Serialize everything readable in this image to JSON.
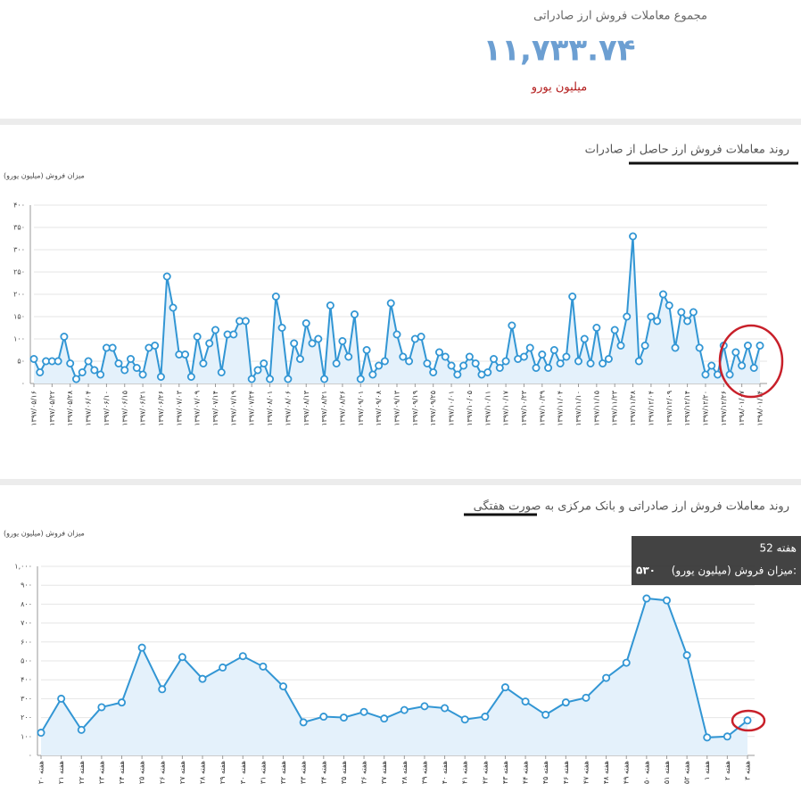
{
  "summary": {
    "title": "مجموع معاملات فروش ارز صادراتی",
    "value": "۱۱,۷۳۳.۷۴",
    "unit": "میلیون یورو"
  },
  "chart_data": [
    {
      "type": "line",
      "title": "روند معاملات فروش ارز حاصل از صادرات",
      "y_label": "میزان فروش (میلیون یورو)",
      "color": "#3296d4",
      "area_color": "#e4f1fb",
      "grid": true,
      "ylim": [
        0,
        400
      ],
      "yticks": [
        {
          "value": 0,
          "label": "۰"
        },
        {
          "value": 50,
          "label": "۵۰"
        },
        {
          "value": 100,
          "label": "۱۰۰"
        },
        {
          "value": 150,
          "label": "۱۵۰"
        },
        {
          "value": 200,
          "label": "۲۰۰"
        },
        {
          "value": 250,
          "label": "۲۵۰"
        },
        {
          "value": 300,
          "label": "۳۰۰"
        },
        {
          "value": 350,
          "label": "۳۵۰"
        },
        {
          "value": 400,
          "label": "۴۰۰"
        }
      ],
      "categories": [
        "۱۳۹۷/۰۵/۱۶",
        null,
        null,
        "۱۳۹۷/۰۵/۲۲",
        null,
        null,
        "۱۳۹۷/۰۵/۲۸",
        null,
        null,
        "۱۳۹۷/۰۶/۰۴",
        null,
        null,
        "۱۳۹۷/۰۶/۱۰",
        null,
        null,
        "۱۳۹۷/۰۶/۱۵",
        null,
        null,
        "۱۳۹۷/۰۶/۲۱",
        null,
        null,
        "۱۳۹۷/۰۶/۲۶",
        null,
        null,
        "۱۳۹۷/۰۷/۰۳",
        null,
        null,
        "۱۳۹۷/۰۷/۰۹",
        null,
        null,
        "۱۳۹۷/۰۷/۱۴",
        null,
        null,
        "۱۳۹۷/۰۷/۱۹",
        null,
        null,
        "۱۳۹۷/۰۷/۲۴",
        null,
        null,
        "۱۳۹۷/۰۸/۰۱",
        null,
        null,
        "۱۳۹۷/۰۸/۰۶",
        null,
        null,
        "۱۳۹۷/۰۸/۱۳",
        null,
        null,
        "۱۳۹۷/۰۸/۲۱",
        null,
        null,
        "۱۳۹۷/۰۸/۲۶",
        null,
        null,
        "۱۳۹۷/۰۹/۰۱",
        null,
        null,
        "۱۳۹۷/۰۹/۰۸",
        null,
        null,
        "۱۳۹۷/۰۹/۱۳",
        null,
        null,
        "۱۳۹۷/۰۹/۱۹",
        null,
        null,
        "۱۳۹۷/۰۹/۲۵",
        null,
        null,
        "۱۳۹۷/۱۰/۰۱",
        null,
        null,
        "۱۳۹۷/۱۰/۰۵",
        null,
        null,
        "۱۳۹۷/۱۰/۱۱",
        null,
        null,
        "۱۳۹۷/۱۰/۱۷",
        null,
        null,
        "۱۳۹۷/۱۰/۲۳",
        null,
        null,
        "۱۳۹۷/۱۰/۲۹",
        null,
        null,
        "۱۳۹۷/۱۱/۰۴",
        null,
        null,
        "۱۳۹۷/۱۱/۱۰",
        null,
        null,
        "۱۳۹۷/۱۱/۱۵",
        null,
        null,
        "۱۳۹۷/۱۱/۲۳",
        null,
        null,
        "۱۳۹۷/۱۱/۲۸",
        null,
        null,
        "۱۳۹۷/۱۲/۰۴",
        null,
        null,
        "۱۳۹۷/۱۲/۰۹",
        null,
        null,
        "۱۳۹۷/۱۲/۱۴",
        null,
        null,
        "۱۳۹۷/۱۲/۲۰",
        null,
        null,
        "۱۳۹۷/۱۲/۲۶",
        null,
        null,
        "۱۳۹۸/۰۱/۰۷",
        null,
        null,
        "۱۳۹۸/۰۱/۱۴"
      ],
      "values": [
        55,
        25,
        50,
        50,
        50,
        105,
        45,
        10,
        25,
        50,
        30,
        20,
        80,
        80,
        45,
        30,
        55,
        35,
        20,
        80,
        85,
        15,
        240,
        170,
        65,
        65,
        15,
        105,
        45,
        90,
        120,
        25,
        110,
        110,
        140,
        140,
        10,
        30,
        45,
        10,
        195,
        125,
        10,
        90,
        55,
        135,
        90,
        100,
        10,
        175,
        45,
        95,
        60,
        155,
        10,
        75,
        20,
        40,
        50,
        180,
        110,
        60,
        50,
        100,
        105,
        45,
        25,
        70,
        60,
        40,
        20,
        40,
        60,
        45,
        20,
        25,
        55,
        35,
        50,
        130,
        55,
        60,
        80,
        35,
        65,
        35,
        75,
        45,
        60,
        195,
        50,
        100,
        45,
        125,
        45,
        55,
        120,
        85,
        150,
        330,
        50,
        85,
        150,
        140,
        200,
        175,
        80,
        160,
        140,
        160,
        80,
        20,
        40,
        20,
        85,
        20,
        70,
        40,
        85,
        35,
        85
      ]
    },
    {
      "type": "line",
      "title": "روند معاملات فروش ارز صادراتی و بانک مرکزی به صورت هفتگی",
      "y_label": "میزان فروش (میلیون یورو)",
      "color": "#3296d4",
      "area_color": "#e4f1fb",
      "grid": true,
      "ylim": [
        0,
        1000
      ],
      "yticks": [
        {
          "value": 0,
          "label": "۰"
        },
        {
          "value": 100,
          "label": "۱۰۰"
        },
        {
          "value": 200,
          "label": "۲۰۰"
        },
        {
          "value": 300,
          "label": "۳۰۰"
        },
        {
          "value": 400,
          "label": "۴۰۰"
        },
        {
          "value": 500,
          "label": "۵۰۰"
        },
        {
          "value": 600,
          "label": "۶۰۰"
        },
        {
          "value": 700,
          "label": "۷۰۰"
        },
        {
          "value": 800,
          "label": "۸۰۰"
        },
        {
          "value": 900,
          "label": "۹۰۰"
        },
        {
          "value": 1000,
          "label": "۱,۰۰۰"
        }
      ],
      "categories": [
        "هفته ۲۰",
        "هفته ۲۱",
        "هفته ۲۲",
        "هفته ۲۳",
        "هفته ۲۴",
        "هفته ۲۵",
        "هفته ۲۶",
        "هفته ۲۷",
        "هفته ۲۸",
        "هفته ۲۹",
        "هفته ۳۰",
        "هفته ۳۱",
        "هفته ۳۲",
        "هفته ۳۳",
        "هفته ۳۴",
        "هفته ۳۵",
        "هفته ۳۶",
        "هفته ۳۷",
        "هفته ۳۸",
        "هفته ۳۹",
        "هفته ۴۰",
        "هفته ۴۱",
        "هفته ۴۲",
        "هفته ۴۳",
        "هفته ۴۴",
        "هفته ۴۵",
        "هفته ۴۶",
        "هفته ۴۷",
        "هفته ۴۸",
        "هفته ۴۹",
        "هفته ۵۰",
        "هفته ۵۱",
        "هفته ۵۲",
        "هفته ۱",
        "هفته ۲",
        "هفته ۳"
      ],
      "values": [
        120,
        300,
        135,
        255,
        280,
        570,
        350,
        520,
        405,
        465,
        525,
        470,
        365,
        175,
        205,
        200,
        230,
        195,
        240,
        260,
        250,
        190,
        205,
        360,
        285,
        215,
        280,
        305,
        410,
        490,
        830,
        820,
        530,
        95,
        100,
        185
      ],
      "tooltip": {
        "title": "هفته 52",
        "label": "میزان فروش (میلیون یورو):",
        "value": "۵۳۰"
      }
    }
  ]
}
